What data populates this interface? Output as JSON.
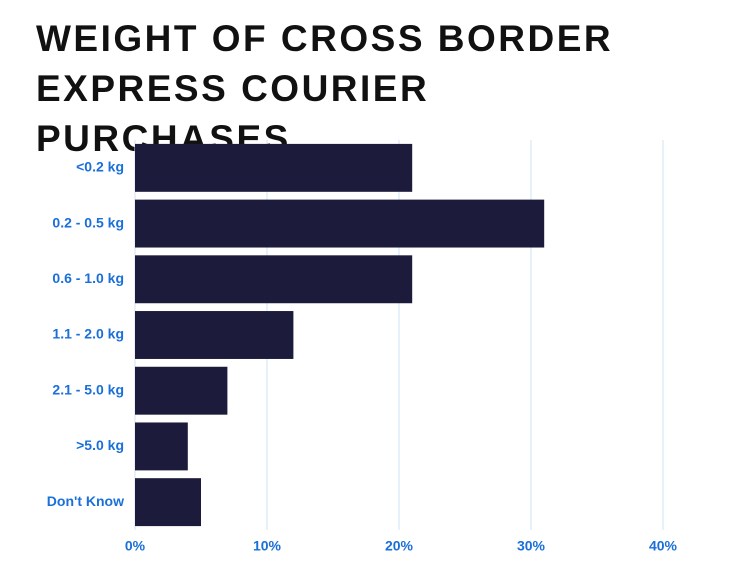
{
  "chart_data": {
    "type": "bar",
    "orientation": "horizontal",
    "title": "WEIGHT OF CROSS BORDER EXPRESS COURIER PURCHASES",
    "categories": [
      "<0.2 kg",
      "0.2 - 0.5 kg",
      "0.6 - 1.0 kg",
      "1.1 - 2.0 kg",
      "2.1 - 5.0 kg",
      ">5.0 kg",
      "Don't Know"
    ],
    "values": [
      21,
      31,
      21,
      12,
      7,
      4,
      5
    ],
    "color": "#1c1b3b",
    "xlim": [
      0,
      40
    ],
    "xticks": [
      {
        "value": 0,
        "label": "0%"
      },
      {
        "value": 10,
        "label": "10%"
      },
      {
        "value": 20,
        "label": "20%"
      },
      {
        "value": 30,
        "label": "30%"
      },
      {
        "value": 40,
        "label": "40%"
      }
    ],
    "grid": true
  }
}
